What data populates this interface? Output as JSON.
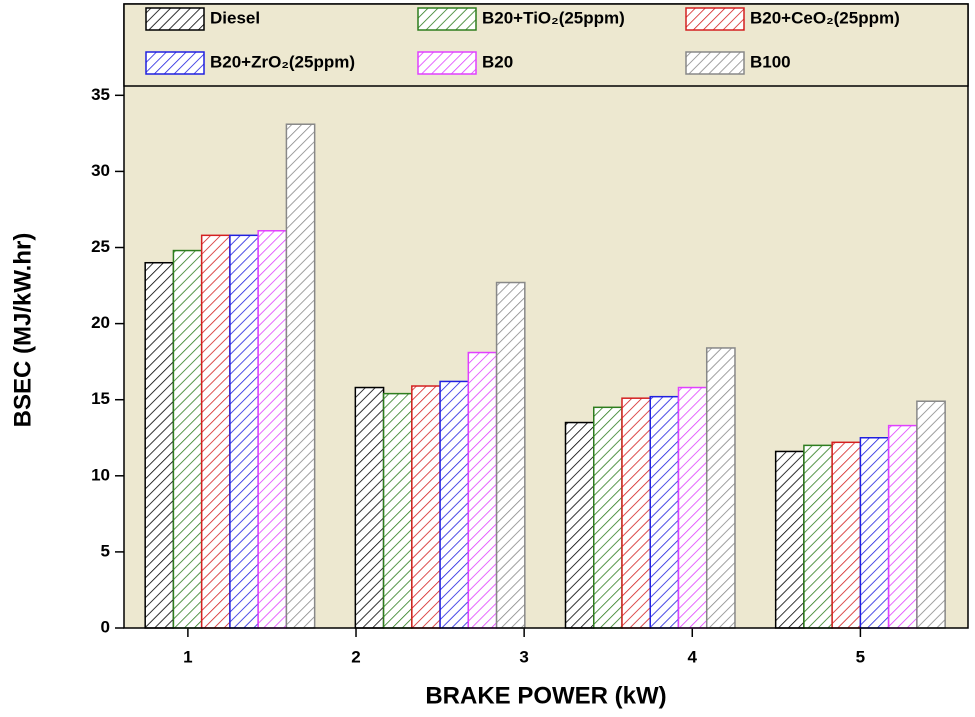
{
  "chart_data": {
    "type": "bar",
    "x_label": "BRAKE POWER (kW)",
    "y_label": "BSEC (MJ/kW.hr)",
    "x": [
      1.25,
      2.5,
      3.75,
      5
    ],
    "series": [
      {
        "name": "Diesel",
        "color": "#000000",
        "values": [
          24.0,
          15.8,
          13.5,
          11.6
        ]
      },
      {
        "name": "B20+TiO₂(25ppm)",
        "color": "#2e7d1e",
        "values": [
          24.8,
          15.4,
          14.5,
          12.0
        ]
      },
      {
        "name": "B20+CeO₂(25ppm)",
        "color": "#d42020",
        "values": [
          25.8,
          15.9,
          15.1,
          12.2
        ]
      },
      {
        "name": "B20+ZrO₂(25ppm)",
        "color": "#2020e0",
        "values": [
          25.8,
          16.2,
          15.2,
          12.5
        ]
      },
      {
        "name": "B20",
        "color": "#e040ff",
        "values": [
          26.1,
          18.1,
          15.8,
          13.3
        ]
      },
      {
        "name": "B100",
        "color": "#888888",
        "values": [
          33.1,
          22.7,
          18.4,
          14.9
        ]
      }
    ],
    "xlim": [
      0.62,
      5.64
    ],
    "xticks": [
      1,
      2,
      3,
      4,
      5
    ],
    "ylim": [
      0,
      41
    ],
    "yticks": [
      0,
      5,
      10,
      15,
      20,
      25,
      30,
      35
    ],
    "legend": "top"
  }
}
